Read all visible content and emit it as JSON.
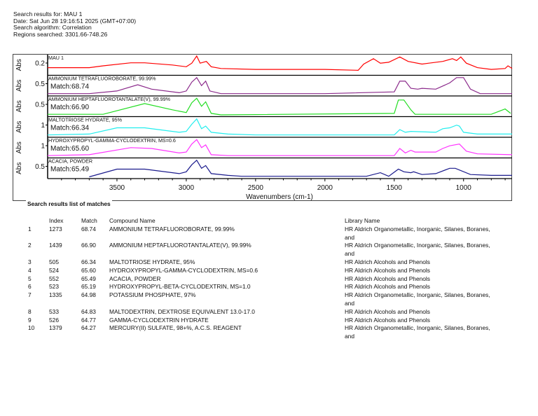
{
  "header": {
    "search_results_for": "Search results for:  MAU 1",
    "date": "Date:  Sat Jun 28 19:16:51 2025 (GMT+07:00)",
    "algorithm": "Search algorithm:  Correlation",
    "regions": "Regions searched:  3301.66-748.26"
  },
  "chart_data": {
    "type": "line",
    "xlabel": "Wavenumbers (cm-1)",
    "ylabel": "Abs",
    "xlim": [
      4000,
      650
    ],
    "x_ticks": [
      3500,
      3000,
      2500,
      2000,
      1500,
      1000
    ],
    "panels": [
      {
        "name": "MAU 1",
        "match": "",
        "ytick": "0.2",
        "color": "#ff0000",
        "points": [
          [
            4000,
            0.35
          ],
          [
            3700,
            0.35
          ],
          [
            3600,
            0.45
          ],
          [
            3400,
            0.62
          ],
          [
            3300,
            0.62
          ],
          [
            3100,
            0.5
          ],
          [
            3000,
            0.4
          ],
          [
            2960,
            0.6
          ],
          [
            2925,
            1.0
          ],
          [
            2900,
            0.6
          ],
          [
            2855,
            0.7
          ],
          [
            2820,
            0.4
          ],
          [
            2750,
            0.3
          ],
          [
            2500,
            0.25
          ],
          [
            2000,
            0.25
          ],
          [
            1760,
            0.2
          ],
          [
            1720,
            0.55
          ],
          [
            1650,
            0.85
          ],
          [
            1600,
            0.6
          ],
          [
            1540,
            0.65
          ],
          [
            1460,
            0.95
          ],
          [
            1400,
            0.7
          ],
          [
            1300,
            0.55
          ],
          [
            1250,
            0.6
          ],
          [
            1150,
            0.7
          ],
          [
            1080,
            0.85
          ],
          [
            1050,
            0.75
          ],
          [
            1020,
            0.95
          ],
          [
            980,
            0.6
          ],
          [
            900,
            0.35
          ],
          [
            800,
            0.25
          ],
          [
            700,
            0.3
          ],
          [
            680,
            0.45
          ],
          [
            650,
            0.3
          ]
        ]
      },
      {
        "name": "AMMONIUM TETRAFLUOROBORATE, 99.99%",
        "match": "Match:68.74",
        "ytick": "0.5",
        "color": "#8b2a8b",
        "points": [
          [
            4000,
            0.05
          ],
          [
            3700,
            0.05
          ],
          [
            3500,
            0.2
          ],
          [
            3350,
            0.55
          ],
          [
            3250,
            0.3
          ],
          [
            3050,
            0.1
          ],
          [
            3000,
            0.2
          ],
          [
            2960,
            0.7
          ],
          [
            2925,
            0.95
          ],
          [
            2890,
            0.5
          ],
          [
            2860,
            0.75
          ],
          [
            2830,
            0.2
          ],
          [
            2750,
            0.05
          ],
          [
            2000,
            0.05
          ],
          [
            1500,
            0.15
          ],
          [
            1460,
            0.75
          ],
          [
            1420,
            0.75
          ],
          [
            1380,
            0.35
          ],
          [
            1330,
            0.3
          ],
          [
            1300,
            0.35
          ],
          [
            1200,
            0.3
          ],
          [
            1100,
            0.65
          ],
          [
            1050,
            0.95
          ],
          [
            1000,
            0.95
          ],
          [
            950,
            0.3
          ],
          [
            880,
            0.05
          ],
          [
            650,
            0.05
          ]
        ]
      },
      {
        "name": "AMMONIUM HEPTAFLUOROTANTALATE(V), 99.99%",
        "match": "Match:66.90",
        "ytick": "0.5",
        "color": "#22dd22",
        "points": [
          [
            4000,
            0.05
          ],
          [
            3600,
            0.05
          ],
          [
            3300,
            0.65
          ],
          [
            3100,
            0.3
          ],
          [
            3000,
            0.15
          ],
          [
            2960,
            0.7
          ],
          [
            2925,
            0.95
          ],
          [
            2890,
            0.5
          ],
          [
            2860,
            0.75
          ],
          [
            2820,
            0.1
          ],
          [
            2750,
            0.02
          ],
          [
            1500,
            0.1
          ],
          [
            1470,
            0.85
          ],
          [
            1430,
            0.85
          ],
          [
            1380,
            0.3
          ],
          [
            1350,
            0.05
          ],
          [
            800,
            0.05
          ],
          [
            700,
            0.35
          ],
          [
            660,
            0.1
          ]
        ]
      },
      {
        "name": "MALTOTRIOSE HYDRATE, 95%",
        "match": "Match:66.34",
        "ytick": "1",
        "color": "#22eeee",
        "points": [
          [
            4000,
            0.05
          ],
          [
            3700,
            0.1
          ],
          [
            3500,
            0.45
          ],
          [
            3300,
            0.45
          ],
          [
            3050,
            0.2
          ],
          [
            3000,
            0.25
          ],
          [
            2960,
            0.65
          ],
          [
            2925,
            0.95
          ],
          [
            2890,
            0.4
          ],
          [
            2860,
            0.55
          ],
          [
            2820,
            0.2
          ],
          [
            2700,
            0.1
          ],
          [
            2500,
            0.05
          ],
          [
            1500,
            0.05
          ],
          [
            1460,
            0.35
          ],
          [
            1420,
            0.2
          ],
          [
            1380,
            0.25
          ],
          [
            1200,
            0.2
          ],
          [
            1150,
            0.4
          ],
          [
            1100,
            0.45
          ],
          [
            1050,
            0.6
          ],
          [
            1030,
            0.55
          ],
          [
            1000,
            0.2
          ],
          [
            900,
            0.1
          ],
          [
            650,
            0.1
          ]
        ]
      },
      {
        "name": "HYDROXYPROPYL-GAMMA-CYCLODEXTRIN, MS=0.6",
        "match": "Match:65.60",
        "ytick": "1",
        "color": "#ff33ff",
        "points": [
          [
            4000,
            0.05
          ],
          [
            3700,
            0.1
          ],
          [
            3400,
            0.5
          ],
          [
            3250,
            0.45
          ],
          [
            3050,
            0.2
          ],
          [
            3000,
            0.25
          ],
          [
            2960,
            0.7
          ],
          [
            2925,
            0.95
          ],
          [
            2890,
            0.5
          ],
          [
            2860,
            0.65
          ],
          [
            2820,
            0.1
          ],
          [
            2700,
            0.05
          ],
          [
            1500,
            0.05
          ],
          [
            1460,
            0.45
          ],
          [
            1420,
            0.2
          ],
          [
            1380,
            0.35
          ],
          [
            1350,
            0.25
          ],
          [
            1200,
            0.25
          ],
          [
            1150,
            0.45
          ],
          [
            1100,
            0.6
          ],
          [
            1030,
            0.7
          ],
          [
            980,
            0.3
          ],
          [
            900,
            0.15
          ],
          [
            650,
            0.1
          ]
        ]
      },
      {
        "name": "ACACIA, POWDER",
        "match": "Match:65.49",
        "ytick": "0.5",
        "color": "#1a1a8c",
        "points": [
          [
            3700,
            0.02
          ],
          [
            3500,
            0.45
          ],
          [
            3300,
            0.45
          ],
          [
            3050,
            0.2
          ],
          [
            3000,
            0.3
          ],
          [
            2960,
            0.7
          ],
          [
            2925,
            0.95
          ],
          [
            2890,
            0.5
          ],
          [
            2860,
            0.65
          ],
          [
            2820,
            0.2
          ],
          [
            2700,
            0.1
          ],
          [
            2600,
            0.05
          ],
          [
            1700,
            0.05
          ],
          [
            1600,
            0.25
          ],
          [
            1540,
            0.05
          ],
          [
            1470,
            0.45
          ],
          [
            1430,
            0.3
          ],
          [
            1380,
            0.25
          ],
          [
            1360,
            0.3
          ],
          [
            1300,
            0.15
          ],
          [
            1200,
            0.2
          ],
          [
            1100,
            0.5
          ],
          [
            1060,
            0.5
          ],
          [
            950,
            0.15
          ],
          [
            800,
            0.1
          ],
          [
            650,
            0.1
          ]
        ]
      }
    ]
  },
  "results": {
    "title": "Search results list of matches",
    "headers": [
      "",
      "Index",
      "Match",
      "Compound Name",
      "Library Name"
    ],
    "rows": [
      [
        "1",
        "1273",
        "68.74",
        "AMMONIUM TETRAFLUOROBORATE, 99.99%",
        "HR Aldrich Organometallic, Inorganic, Silanes, Boranes, and"
      ],
      [
        "2",
        "1439",
        "66.90",
        "AMMONIUM HEPTAFLUOROTANTALATE(V), 99.99%",
        "HR Aldrich Organometallic, Inorganic, Silanes, Boranes, and"
      ],
      [
        "3",
        "505",
        "66.34",
        "MALTOTRIOSE HYDRATE, 95%",
        "HR Aldrich Alcohols and Phenols"
      ],
      [
        "4",
        "524",
        "65.60",
        "HYDROXYPROPYL-GAMMA-CYCLODEXTRIN, MS=0.6",
        "HR Aldrich Alcohols and Phenols"
      ],
      [
        "5",
        "552",
        "65.49",
        "ACACIA, POWDER",
        "HR Aldrich Alcohols and Phenols"
      ],
      [
        "6",
        "523",
        "65.19",
        "HYDROXYPROPYL-BETA-CYCLODEXTRIN, MS=1.0",
        "HR Aldrich Alcohols and Phenols"
      ],
      [
        "7",
        "1335",
        "64.98",
        "POTASSIUM PHOSPHATE, 97%",
        "HR Aldrich Organometallic, Inorganic, Silanes, Boranes, and"
      ],
      [
        "8",
        "533",
        "64.83",
        "MALTODEXTRIN, DEXTROSE EQUIVALENT 13.0-17.0",
        "HR Aldrich Alcohols and Phenols"
      ],
      [
        "9",
        "526",
        "64.77",
        "GAMMA-CYCLODEXTRIN HYDRATE",
        "HR Aldrich Alcohols and Phenols"
      ],
      [
        "10",
        "1379",
        "64.27",
        "MERCURY(II) SULFATE, 98+%, A.C.S. REAGENT",
        "HR Aldrich Organometallic, Inorganic, Silanes, Boranes, and"
      ]
    ]
  }
}
